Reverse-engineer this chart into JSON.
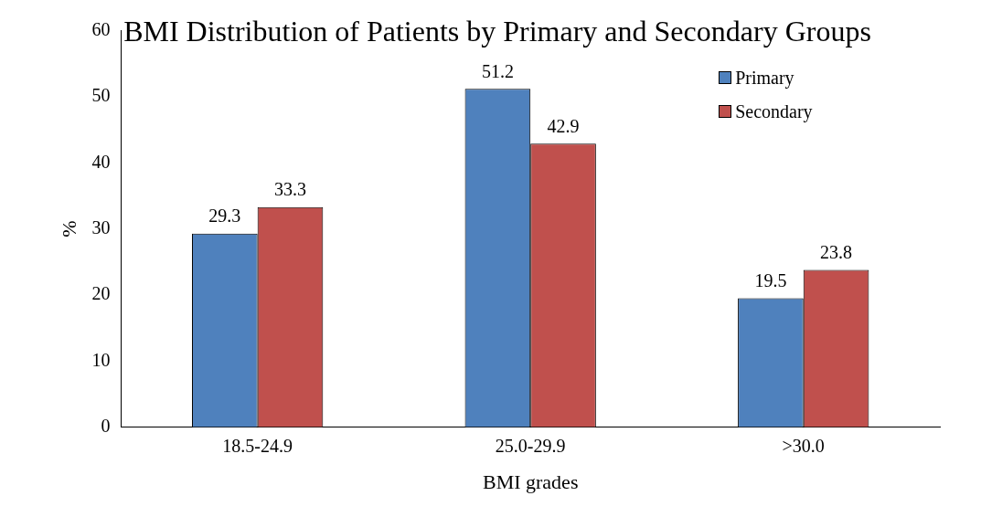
{
  "chart_data": {
    "type": "bar",
    "title": "BMI Distribution of Patients by Primary and Secondary Groups",
    "xlabel": "BMI grades",
    "ylabel": "%",
    "categories": [
      "18.5-24.9",
      "25.0-29.9",
      ">30.0"
    ],
    "series": [
      {
        "name": "Primary",
        "color": "#4f81bd",
        "values": [
          29.3,
          51.2,
          19.5
        ]
      },
      {
        "name": "Secondary",
        "color": "#c0504d",
        "values": [
          33.3,
          42.9,
          23.8
        ]
      }
    ],
    "ylim": [
      0,
      60
    ],
    "yticks": [
      0,
      10,
      20,
      30,
      40,
      50,
      60
    ],
    "grid": false,
    "legend": "top right",
    "data_labels": true
  }
}
